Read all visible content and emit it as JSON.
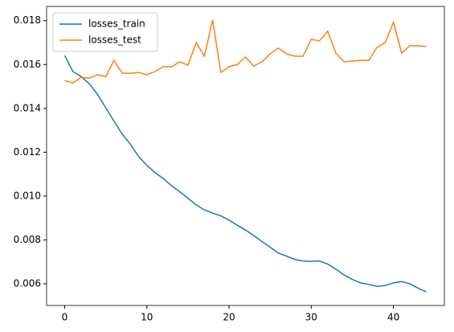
{
  "chart_data": {
    "type": "line",
    "x": [
      0,
      1,
      2,
      3,
      4,
      5,
      6,
      7,
      8,
      9,
      10,
      11,
      12,
      13,
      14,
      15,
      16,
      17,
      18,
      19,
      20,
      21,
      22,
      23,
      24,
      25,
      26,
      27,
      28,
      29,
      30,
      31,
      32,
      33,
      34,
      35,
      36,
      37,
      38,
      39,
      40,
      41,
      42,
      43,
      44
    ],
    "series": [
      {
        "name": "losses_train",
        "color": "#1f77b4",
        "values": [
          0.01641,
          0.01568,
          0.01545,
          0.01512,
          0.01464,
          0.01402,
          0.01342,
          0.01283,
          0.01236,
          0.0118,
          0.0114,
          0.01107,
          0.0108,
          0.01047,
          0.0102,
          0.0099,
          0.0096,
          0.00937,
          0.00922,
          0.0091,
          0.0089,
          0.00867,
          0.00845,
          0.0082,
          0.00793,
          0.00767,
          0.0074,
          0.00726,
          0.00711,
          0.00704,
          0.00702,
          0.00704,
          0.0069,
          0.00667,
          0.0064,
          0.0062,
          0.00604,
          0.00597,
          0.00588,
          0.00592,
          0.00604,
          0.0061,
          0.006,
          0.0058,
          0.00563
        ]
      },
      {
        "name": "losses_test",
        "color": "#ff7f0e",
        "values": [
          0.01527,
          0.01516,
          0.01542,
          0.01538,
          0.01553,
          0.01545,
          0.01619,
          0.0156,
          0.0156,
          0.01564,
          0.01553,
          0.01568,
          0.0159,
          0.0159,
          0.01612,
          0.01597,
          0.017,
          0.01638,
          0.01803,
          0.01564,
          0.0159,
          0.016,
          0.01634,
          0.01593,
          0.01612,
          0.01649,
          0.01675,
          0.01649,
          0.01638,
          0.01638,
          0.01715,
          0.01708,
          0.01752,
          0.01652,
          0.01612,
          0.01616,
          0.01619,
          0.01619,
          0.01678,
          0.017,
          0.01793,
          0.01652,
          0.01686,
          0.01686,
          0.01682
        ]
      }
    ],
    "xlim": [
      -2.2,
      46.2
    ],
    "xticks": [
      0,
      10,
      20,
      30,
      40
    ],
    "ylim": [
      0.00501,
      0.01865
    ],
    "yticks": [
      0.006,
      0.008,
      {
        "value": 0.01,
        "label": "0.010"
      },
      0.012,
      0.014,
      0.016,
      0.018
    ],
    "legend": "upper left",
    "grid": false
  }
}
